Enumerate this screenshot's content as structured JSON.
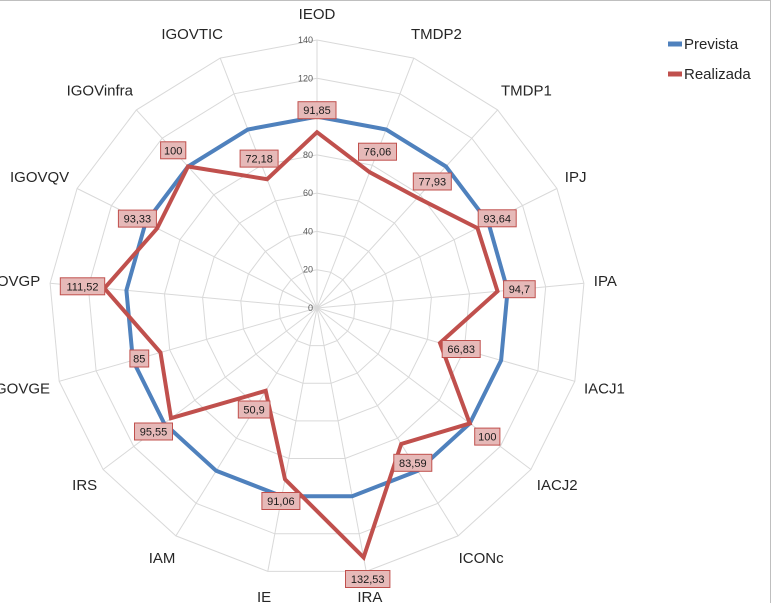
{
  "chart_data": {
    "type": "radar",
    "title": "",
    "categories": [
      "IEOD",
      "TMDP2",
      "TMDP1",
      "IPJ",
      "IPA",
      "IACJ1",
      "IACJ2",
      "ICONc",
      "IRA",
      "IE",
      "IAM",
      "IRS",
      "IGOVGE",
      "IGOVGP",
      "IGOVQV",
      "IGOVinfra",
      "IGOVTIC"
    ],
    "ylim": [
      0,
      140
    ],
    "ticks": [
      0,
      20,
      40,
      60,
      80,
      100,
      120,
      140
    ],
    "grid": true,
    "legend_position": "top-right",
    "series": [
      {
        "name": "Prevista",
        "color": "#4f81bd",
        "values": [
          100,
          100,
          100,
          100,
          100,
          100,
          100,
          100,
          100,
          100,
          100,
          100,
          100,
          100,
          100,
          100,
          100
        ]
      },
      {
        "name": "Realizada",
        "color": "#c0504d",
        "values": [
          91.85,
          76.06,
          77.93,
          93.64,
          94.7,
          66.83,
          100,
          83.59,
          132.53,
          91.06,
          50.9,
          95.55,
          85,
          111.52,
          93.33,
          100,
          72.18
        ]
      }
    ],
    "data_labels": [
      "91,85",
      "76,06",
      "77,93",
      "93,64",
      "94,7",
      "66,83",
      "100",
      "83,59",
      "132,53",
      "91,06",
      "50,9",
      "95,55",
      "85",
      "111,52",
      "93,33",
      "100",
      "72,18"
    ],
    "data_label_style": {
      "fill": "#e6b9b8",
      "border": "#c0504d"
    }
  }
}
